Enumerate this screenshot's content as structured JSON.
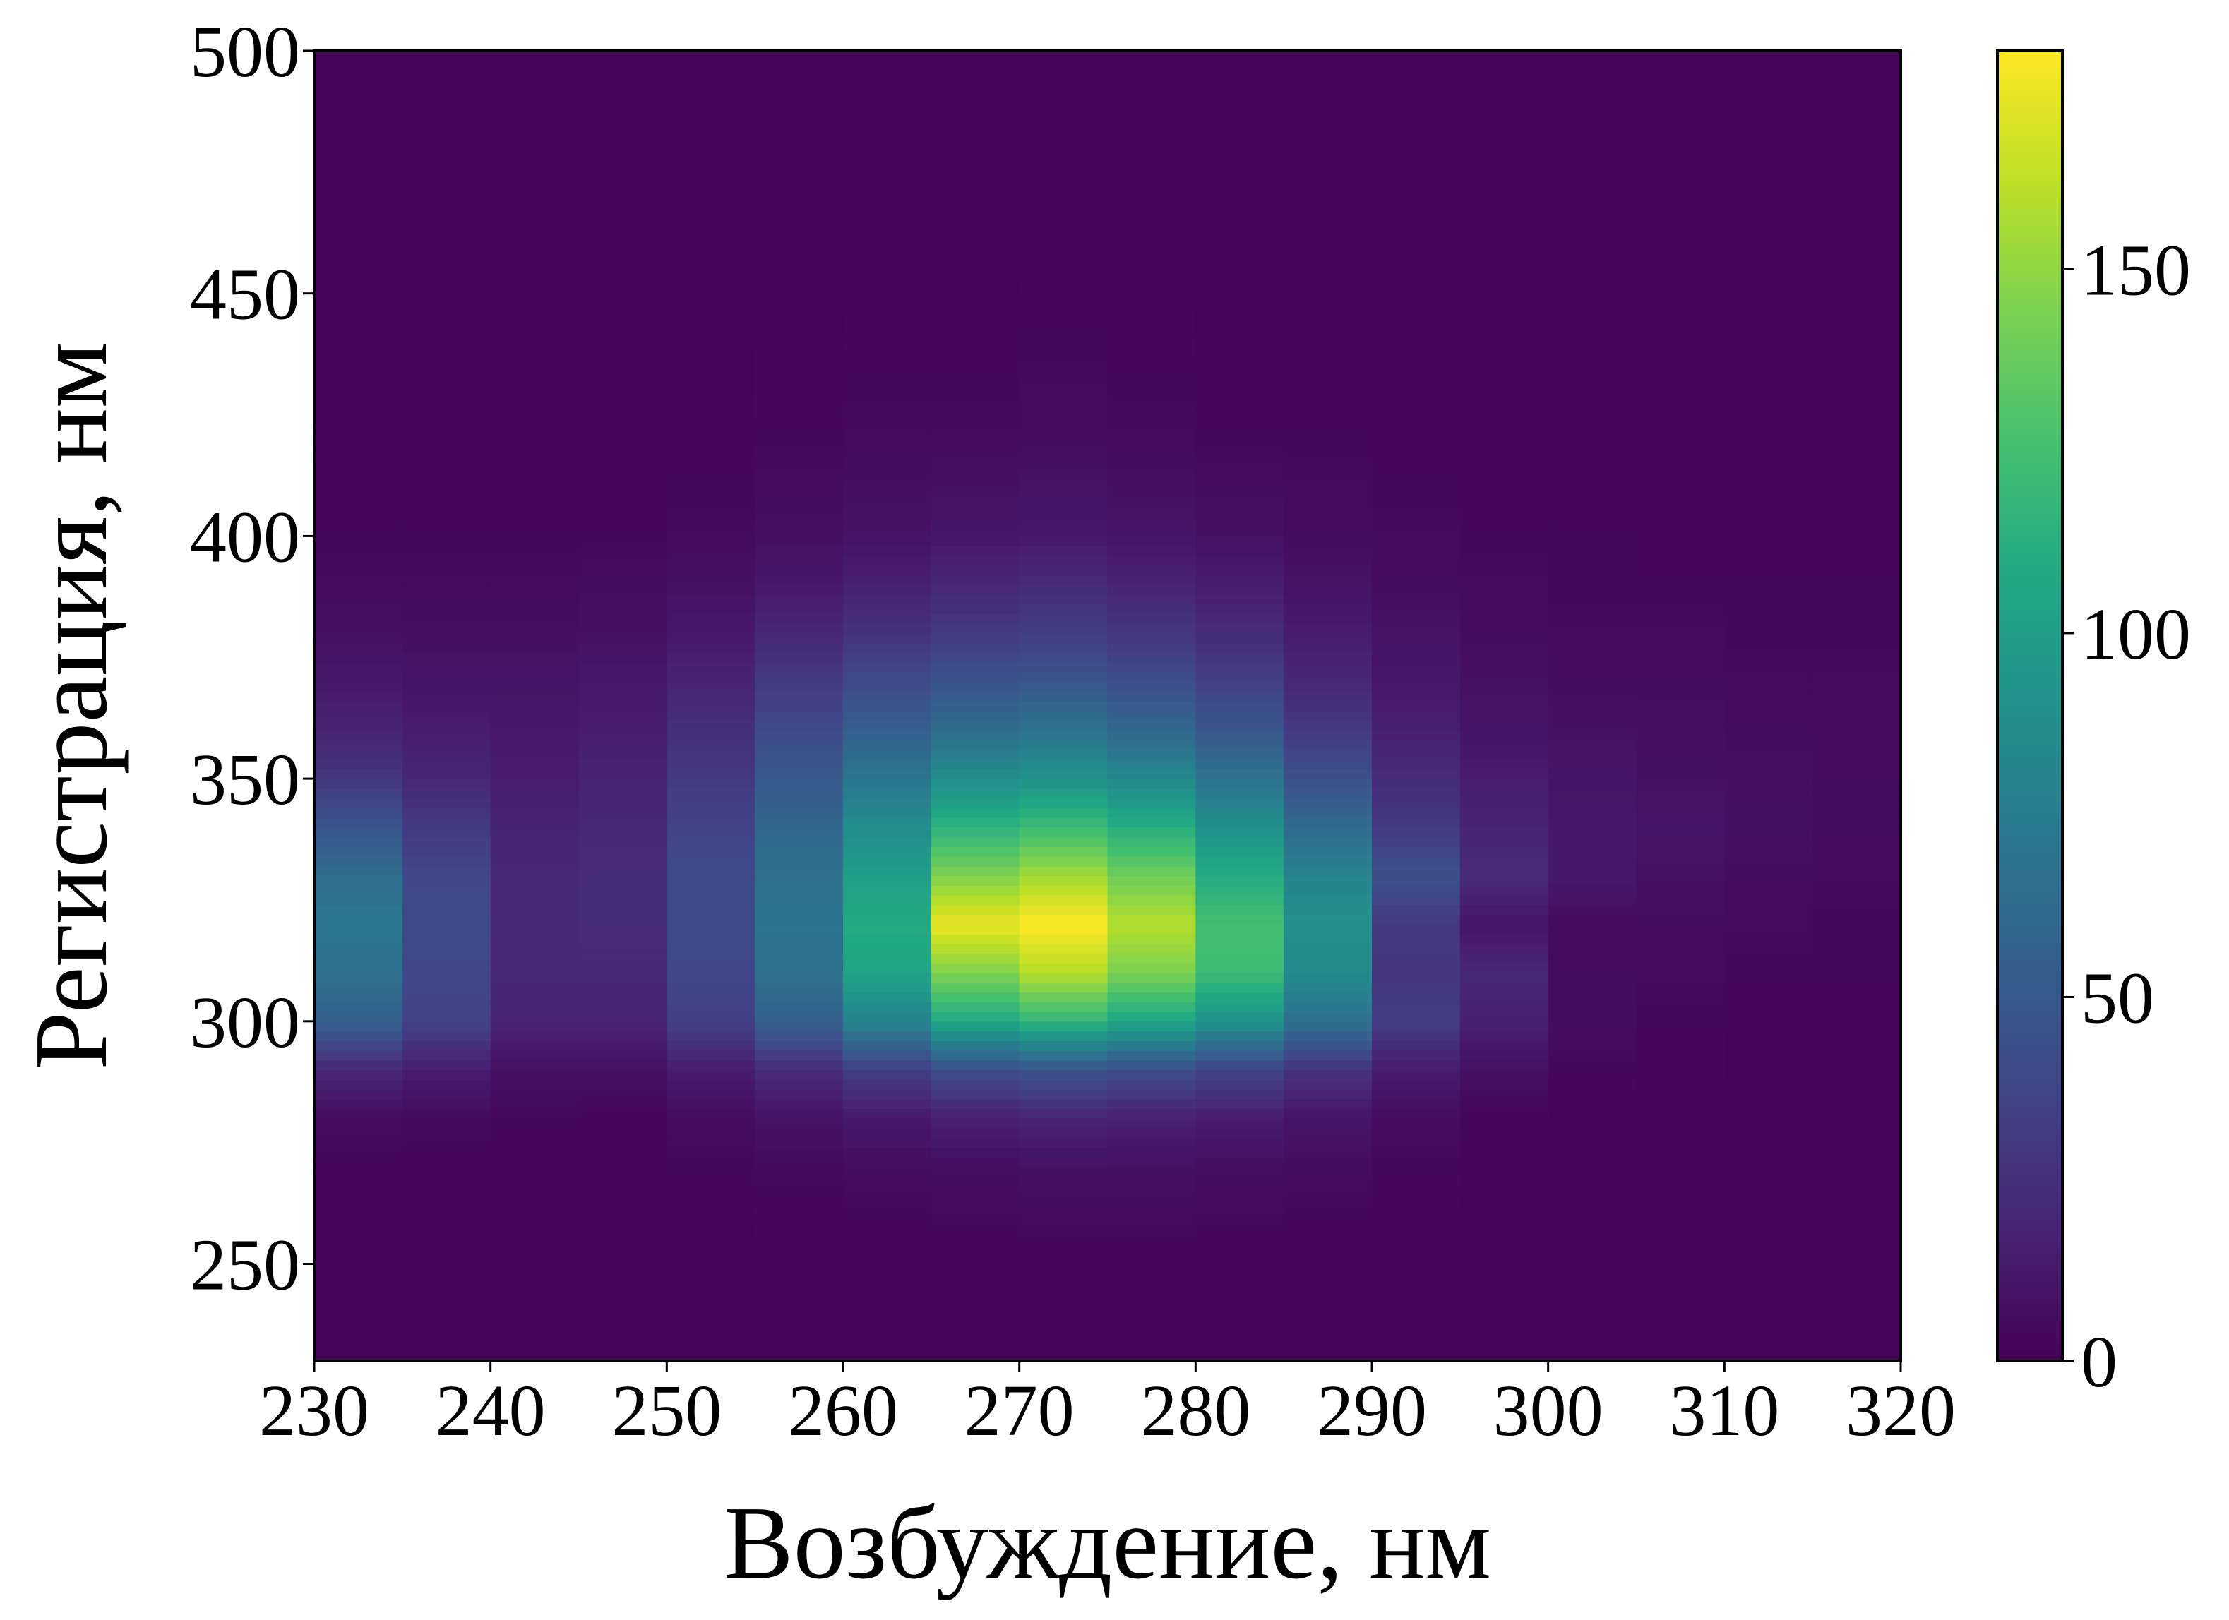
{
  "chart_data": {
    "type": "heatmap",
    "xlabel": "Возбуждение, нм",
    "ylabel": "Регистрация, нм",
    "xlim": [
      230,
      320
    ],
    "ylim": [
      230,
      500
    ],
    "x_ticks": [
      230,
      240,
      250,
      260,
      270,
      280,
      290,
      300,
      310,
      320
    ],
    "y_ticks": [
      250,
      300,
      350,
      400,
      450,
      500
    ],
    "colorbar": {
      "colormap": "viridis",
      "range": [
        0,
        180
      ],
      "ticks": [
        0,
        50,
        100,
        150
      ],
      "placement": "right"
    },
    "x_bins": [
      232.5,
      237.5,
      242.5,
      247.5,
      252.5,
      257.5,
      262.5,
      267.5,
      272.5,
      277.5,
      282.5,
      287.5,
      292.5,
      297.5,
      302.5,
      307.5,
      312.5,
      317.5
    ],
    "y_bins": [
      270,
      280,
      290,
      300,
      310,
      320,
      330,
      340,
      350,
      360,
      370,
      380,
      390,
      400,
      420
    ],
    "values": [
      [
        3,
        3,
        3,
        3,
        4,
        5,
        6,
        7,
        8,
        8,
        7,
        6,
        4,
        3,
        2,
        2,
        2,
        2
      ],
      [
        6,
        5,
        4,
        3,
        6,
        9,
        12,
        16,
        18,
        16,
        14,
        10,
        6,
        3,
        2,
        2,
        2,
        2
      ],
      [
        20,
        15,
        8,
        8,
        14,
        22,
        33,
        42,
        46,
        42,
        36,
        26,
        14,
        8,
        4,
        3,
        2,
        2
      ],
      [
        55,
        35,
        18,
        18,
        34,
        55,
        80,
        108,
        118,
        106,
        92,
        66,
        32,
        16,
        6,
        4,
        3,
        3
      ],
      [
        66,
        38,
        20,
        20,
        38,
        66,
        104,
        145,
        160,
        144,
        122,
        86,
        28,
        20,
        6,
        5,
        4,
        4
      ],
      [
        72,
        40,
        20,
        22,
        40,
        70,
        110,
        175,
        180,
        160,
        125,
        90,
        30,
        10,
        5,
        6,
        5,
        4
      ],
      [
        64,
        38,
        20,
        22,
        40,
        66,
        100,
        145,
        155,
        140,
        110,
        80,
        44,
        22,
        12,
        8,
        6,
        5
      ],
      [
        48,
        30,
        18,
        20,
        36,
        60,
        88,
        115,
        122,
        112,
        90,
        62,
        30,
        18,
        12,
        10,
        8,
        6
      ],
      [
        28,
        20,
        14,
        18,
        30,
        50,
        70,
        88,
        92,
        84,
        68,
        44,
        22,
        14,
        10,
        8,
        7,
        6
      ],
      [
        18,
        14,
        12,
        14,
        24,
        40,
        54,
        64,
        68,
        60,
        48,
        30,
        16,
        10,
        8,
        7,
        6,
        5
      ],
      [
        12,
        10,
        10,
        12,
        18,
        30,
        40,
        46,
        48,
        42,
        34,
        20,
        12,
        8,
        6,
        6,
        5,
        5
      ],
      [
        8,
        7,
        7,
        8,
        12,
        20,
        26,
        30,
        32,
        28,
        22,
        14,
        9,
        6,
        5,
        5,
        4,
        4
      ],
      [
        5,
        5,
        5,
        6,
        8,
        12,
        16,
        20,
        22,
        18,
        14,
        9,
        6,
        5,
        4,
        4,
        4,
        4
      ],
      [
        4,
        4,
        4,
        4,
        5,
        7,
        9,
        11,
        12,
        10,
        8,
        6,
        5,
        4,
        4,
        3,
        3,
        3
      ],
      [
        3,
        3,
        3,
        3,
        3,
        4,
        5,
        5,
        6,
        5,
        4,
        4,
        3,
        3,
        3,
        3,
        3,
        3
      ]
    ]
  }
}
